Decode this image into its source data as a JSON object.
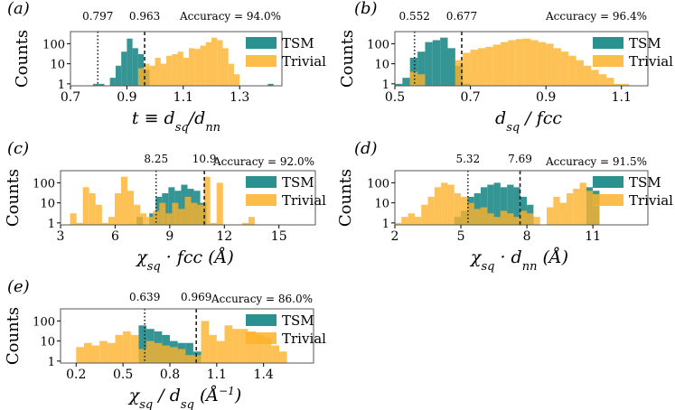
{
  "colors": {
    "TSM": "#1f8a8a",
    "Trivial": "#fdb22b",
    "axis": "#000000",
    "frame": "#555555"
  },
  "chart_data": [
    {
      "type": "bar",
      "panel_label": "(a)",
      "xlabel": "t ≡ d_sq/d_nn",
      "ylabel": "Counts",
      "xlim": [
        0.7,
        1.45
      ],
      "xticks": [
        0.7,
        0.9,
        1.1,
        1.3
      ],
      "xtick_labels": [
        "0.7",
        "0.9",
        "1.1",
        "1.3"
      ],
      "yscale": "log",
      "ylim": [
        0.8,
        400
      ],
      "yticks": [
        1,
        10,
        100
      ],
      "ytick_labels": [
        "1",
        "10",
        "100"
      ],
      "accuracy_text": "Accuracy = 94.0%",
      "thresholds": [
        {
          "value": 0.797,
          "label": "0.797",
          "style": "dotted"
        },
        {
          "value": 0.963,
          "label": "0.963",
          "style": "dashed"
        }
      ],
      "legend": [
        "TSM",
        "Trivial"
      ],
      "bin_width": 0.02,
      "series": [
        {
          "name": "TSM",
          "bins": [
            [
              0.79,
              1
            ],
            [
              0.81,
              1
            ],
            [
              0.85,
              2
            ],
            [
              0.87,
              8
            ],
            [
              0.89,
              40
            ],
            [
              0.91,
              180
            ],
            [
              0.93,
              60
            ],
            [
              0.95,
              30
            ],
            [
              0.97,
              5
            ],
            [
              1.41,
              1
            ]
          ]
        },
        {
          "name": "Trivial",
          "bins": [
            [
              0.95,
              6
            ],
            [
              0.97,
              10
            ],
            [
              0.99,
              8
            ],
            [
              1.01,
              20
            ],
            [
              1.03,
              10
            ],
            [
              1.05,
              25
            ],
            [
              1.07,
              30
            ],
            [
              1.09,
              40
            ],
            [
              1.11,
              20
            ],
            [
              1.13,
              60
            ],
            [
              1.15,
              55
            ],
            [
              1.17,
              80
            ],
            [
              1.19,
              120
            ],
            [
              1.21,
              200
            ],
            [
              1.23,
              150
            ],
            [
              1.25,
              60
            ],
            [
              1.27,
              10
            ],
            [
              1.29,
              3
            ]
          ]
        }
      ]
    },
    {
      "type": "bar",
      "panel_label": "(b)",
      "xlabel": "d_sq / fcc",
      "ylabel": "Counts",
      "xlim": [
        0.5,
        1.17
      ],
      "xticks": [
        0.5,
        0.7,
        0.9,
        1.1
      ],
      "xtick_labels": [
        "0.5",
        "0.7",
        "0.9",
        "1.1"
      ],
      "yscale": "log",
      "ylim": [
        0.8,
        400
      ],
      "yticks": [
        1,
        10,
        100
      ],
      "ytick_labels": [
        "1",
        "10",
        "100"
      ],
      "accuracy_text": "Accuracy = 96.4%",
      "thresholds": [
        {
          "value": 0.552,
          "label": "0.552",
          "style": "dotted"
        },
        {
          "value": 0.677,
          "label": "0.677",
          "style": "dashed"
        }
      ],
      "legend": [
        "TSM",
        "Trivial"
      ],
      "bin_width": 0.02,
      "series": [
        {
          "name": "TSM",
          "bins": [
            [
              0.51,
              1
            ],
            [
              0.53,
              2
            ],
            [
              0.55,
              20
            ],
            [
              0.57,
              40
            ],
            [
              0.59,
              120
            ],
            [
              0.61,
              150
            ],
            [
              0.63,
              200
            ],
            [
              0.65,
              60
            ],
            [
              0.67,
              8
            ],
            [
              0.69,
              1
            ]
          ]
        },
        {
          "name": "Trivial",
          "bins": [
            [
              0.55,
              4
            ],
            [
              0.57,
              3
            ],
            [
              0.67,
              15
            ],
            [
              0.69,
              35
            ],
            [
              0.71,
              50
            ],
            [
              0.73,
              60
            ],
            [
              0.75,
              70
            ],
            [
              0.77,
              90
            ],
            [
              0.79,
              120
            ],
            [
              0.81,
              150
            ],
            [
              0.83,
              170
            ],
            [
              0.85,
              180
            ],
            [
              0.87,
              150
            ],
            [
              0.89,
              120
            ],
            [
              0.91,
              100
            ],
            [
              0.93,
              60
            ],
            [
              0.95,
              40
            ],
            [
              0.97,
              25
            ],
            [
              0.99,
              15
            ],
            [
              1.01,
              8
            ],
            [
              1.03,
              5
            ],
            [
              1.05,
              3
            ],
            [
              1.07,
              2
            ],
            [
              1.09,
              1
            ],
            [
              1.11,
              1
            ]
          ]
        }
      ]
    },
    {
      "type": "bar",
      "panel_label": "(c)",
      "xlabel": "χ_sq · fcc (Å)",
      "ylabel": "Counts",
      "xlim": [
        3,
        17
      ],
      "xticks": [
        3,
        6,
        9,
        12,
        15
      ],
      "xtick_labels": [
        "3",
        "6",
        "9",
        "12",
        "15"
      ],
      "yscale": "log",
      "ylim": [
        0.8,
        400
      ],
      "yticks": [
        1,
        10,
        100
      ],
      "ytick_labels": [
        "1",
        "10",
        "100"
      ],
      "accuracy_text": "Accuracy = 92.0%",
      "thresholds": [
        {
          "value": 8.25,
          "label": "8.25",
          "style": "dotted"
        },
        {
          "value": 10.9,
          "label": "10.9",
          "style": "dashed"
        }
      ],
      "legend": [
        "TSM",
        "Trivial"
      ],
      "bin_width": 0.35,
      "series": [
        {
          "name": "TSM",
          "bins": [
            [
              7.35,
              2
            ],
            [
              8.05,
              3
            ],
            [
              8.4,
              20
            ],
            [
              8.75,
              30
            ],
            [
              9.1,
              60
            ],
            [
              9.45,
              40
            ],
            [
              9.8,
              80
            ],
            [
              10.15,
              50
            ],
            [
              10.5,
              40
            ],
            [
              10.85,
              10
            ]
          ]
        },
        {
          "name": "Trivial",
          "bins": [
            [
              3.7,
              3
            ],
            [
              4.05,
              1
            ],
            [
              4.4,
              60
            ],
            [
              4.75,
              30
            ],
            [
              5.1,
              8
            ],
            [
              5.45,
              1
            ],
            [
              5.8,
              2
            ],
            [
              6.15,
              30
            ],
            [
              6.5,
              200
            ],
            [
              6.85,
              40
            ],
            [
              7.2,
              8
            ],
            [
              7.55,
              3
            ],
            [
              7.9,
              2
            ],
            [
              8.25,
              4
            ],
            [
              8.6,
              10
            ],
            [
              8.95,
              3
            ],
            [
              9.3,
              10
            ],
            [
              9.65,
              5
            ],
            [
              10.0,
              20
            ],
            [
              10.35,
              10
            ],
            [
              10.7,
              8
            ],
            [
              11.05,
              200
            ],
            [
              11.4,
              1
            ],
            [
              11.75,
              100
            ],
            [
              13.15,
              1
            ],
            [
              13.5,
              2
            ]
          ]
        }
      ]
    },
    {
      "type": "bar",
      "panel_label": "(d)",
      "xlabel": "χ_sq · d_nn (Å)",
      "ylabel": "Counts",
      "xlim": [
        2,
        13.5
      ],
      "xticks": [
        2,
        5,
        8,
        11
      ],
      "xtick_labels": [
        "2",
        "5",
        "8",
        "11"
      ],
      "yscale": "log",
      "ylim": [
        0.8,
        400
      ],
      "yticks": [
        1,
        10,
        100
      ],
      "ytick_labels": [
        "1",
        "10",
        "100"
      ],
      "accuracy_text": "Accuracy = 91.5%",
      "thresholds": [
        {
          "value": 5.32,
          "label": "5.32",
          "style": "dotted"
        },
        {
          "value": 7.69,
          "label": "7.69",
          "style": "dashed"
        }
      ],
      "legend": [
        "TSM",
        "Trivial"
      ],
      "bin_width": 0.3,
      "series": [
        {
          "name": "TSM",
          "bins": [
            [
              4.85,
              2
            ],
            [
              5.15,
              4
            ],
            [
              5.45,
              20
            ],
            [
              5.75,
              30
            ],
            [
              6.05,
              60
            ],
            [
              6.35,
              80
            ],
            [
              6.65,
              100
            ],
            [
              6.95,
              60
            ],
            [
              7.25,
              80
            ],
            [
              7.55,
              60
            ],
            [
              7.85,
              20
            ],
            [
              8.15,
              8
            ],
            [
              10.85,
              60
            ],
            [
              11.15,
              40
            ]
          ]
        },
        {
          "name": "Trivial",
          "bins": [
            [
              2.15,
              1
            ],
            [
              2.45,
              2
            ],
            [
              2.75,
              3
            ],
            [
              3.05,
              2
            ],
            [
              3.35,
              8
            ],
            [
              3.65,
              20
            ],
            [
              3.95,
              60
            ],
            [
              4.25,
              100
            ],
            [
              4.55,
              80
            ],
            [
              4.85,
              30
            ],
            [
              5.15,
              20
            ],
            [
              5.45,
              10
            ],
            [
              5.75,
              5
            ],
            [
              6.05,
              6
            ],
            [
              6.35,
              3
            ],
            [
              6.65,
              2
            ],
            [
              6.95,
              4
            ],
            [
              7.25,
              3
            ],
            [
              7.55,
              2
            ],
            [
              7.85,
              4
            ],
            [
              8.15,
              3
            ],
            [
              8.45,
              2
            ],
            [
              9.05,
              6
            ],
            [
              9.35,
              20
            ],
            [
              9.65,
              10
            ],
            [
              9.95,
              30
            ],
            [
              10.25,
              50
            ],
            [
              10.55,
              100
            ],
            [
              10.85,
              40
            ],
            [
              11.15,
              8
            ]
          ]
        }
      ]
    },
    {
      "type": "bar",
      "panel_label": "(e)",
      "xlabel": "χ_sq / d_sq (Å⁻¹)",
      "ylabel": "Counts",
      "xlim": [
        0.1,
        1.72
      ],
      "xticks": [
        0.2,
        0.5,
        0.8,
        1.1,
        1.4
      ],
      "xtick_labels": [
        "0.2",
        "0.5",
        "0.8",
        "1.1",
        "1.4"
      ],
      "yscale": "log",
      "ylim": [
        0.8,
        400
      ],
      "yticks": [
        1,
        10,
        100
      ],
      "ytick_labels": [
        "1",
        "10",
        "100"
      ],
      "accuracy_text": "Accuracy = 86.0%",
      "thresholds": [
        {
          "value": 0.639,
          "label": "0.639",
          "style": "dotted"
        },
        {
          "value": 0.969,
          "label": "0.969",
          "style": "dashed"
        }
      ],
      "legend": [
        "TSM",
        "Trivial"
      ],
      "bin_width": 0.05,
      "series": [
        {
          "name": "TSM",
          "bins": [
            [
              0.625,
              60
            ],
            [
              0.675,
              40
            ],
            [
              0.725,
              30
            ],
            [
              0.775,
              20
            ],
            [
              0.825,
              10
            ],
            [
              0.875,
              8
            ],
            [
              0.925,
              8
            ],
            [
              0.975,
              3
            ]
          ]
        },
        {
          "name": "Trivial",
          "bins": [
            [
              0.225,
              5
            ],
            [
              0.275,
              8
            ],
            [
              0.325,
              6
            ],
            [
              0.375,
              10
            ],
            [
              0.425,
              8
            ],
            [
              0.475,
              20
            ],
            [
              0.525,
              30
            ],
            [
              0.575,
              20
            ],
            [
              0.625,
              4
            ],
            [
              0.675,
              10
            ],
            [
              0.725,
              8
            ],
            [
              0.775,
              6
            ],
            [
              0.825,
              5
            ],
            [
              0.875,
              4
            ],
            [
              0.925,
              2
            ],
            [
              0.975,
              2
            ],
            [
              1.025,
              100
            ],
            [
              1.075,
              20
            ],
            [
              1.125,
              10
            ],
            [
              1.175,
              60
            ],
            [
              1.225,
              40
            ],
            [
              1.275,
              40
            ],
            [
              1.325,
              30
            ],
            [
              1.375,
              20
            ],
            [
              1.425,
              15
            ],
            [
              1.475,
              6
            ],
            [
              1.525,
              3
            ]
          ]
        }
      ]
    }
  ]
}
